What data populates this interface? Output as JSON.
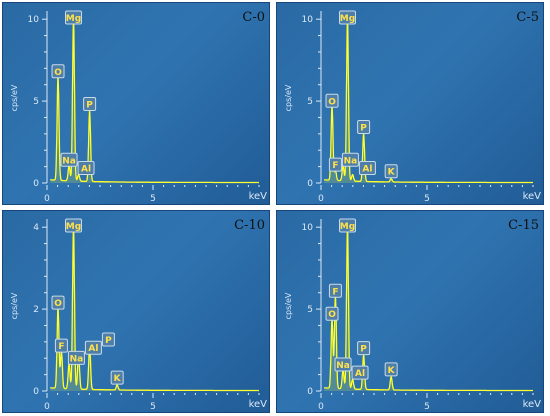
{
  "colors": {
    "spectrum": "#ffff2e",
    "panel_bg": "#2b6eaa",
    "peak_label": "#ffe24a",
    "axis": "#dce9f6"
  },
  "chart_data": [
    {
      "type": "line",
      "sample": "C-0",
      "xlabel": "keV",
      "ylabel": "cps/eV",
      "xlim": [
        0,
        10
      ],
      "ylim": [
        0,
        10.5
      ],
      "xticks": [
        0,
        5
      ],
      "yticks": [
        0,
        5,
        10
      ],
      "peaks": [
        {
          "element": "O",
          "kev": 0.52,
          "intensity": 6.3
        },
        {
          "element": "Na",
          "kev": 1.04,
          "intensity": 0.9
        },
        {
          "element": "Mg",
          "kev": 1.25,
          "intensity": 9.9
        },
        {
          "element": "Al",
          "kev": 1.49,
          "intensity": 0.4
        },
        {
          "element": "P",
          "kev": 2.01,
          "intensity": 4.3
        }
      ]
    },
    {
      "type": "line",
      "sample": "C-5",
      "xlabel": "keV",
      "ylabel": "cps/eV",
      "xlim": [
        0,
        10
      ],
      "ylim": [
        0,
        10.5
      ],
      "xticks": [
        0,
        5
      ],
      "yticks": [
        0,
        5,
        10
      ],
      "peaks": [
        {
          "element": "O",
          "kev": 0.52,
          "intensity": 4.5
        },
        {
          "element": "F",
          "kev": 0.68,
          "intensity": 0.6
        },
        {
          "element": "Na",
          "kev": 1.04,
          "intensity": 0.9
        },
        {
          "element": "Mg",
          "kev": 1.25,
          "intensity": 9.9
        },
        {
          "element": "Al",
          "kev": 1.49,
          "intensity": 0.4
        },
        {
          "element": "P",
          "kev": 2.01,
          "intensity": 2.9
        },
        {
          "element": "K",
          "kev": 3.31,
          "intensity": 0.2
        }
      ]
    },
    {
      "type": "line",
      "sample": "C-10",
      "xlabel": "keV",
      "ylabel": "cps/eV",
      "xlim": [
        0,
        10
      ],
      "ylim": [
        0,
        4.2
      ],
      "xticks": [
        0,
        5
      ],
      "yticks": [
        0,
        2,
        4
      ],
      "peaks": [
        {
          "element": "O",
          "kev": 0.52,
          "intensity": 1.95
        },
        {
          "element": "F",
          "kev": 0.68,
          "intensity": 0.9
        },
        {
          "element": "Na",
          "kev": 1.04,
          "intensity": 0.6
        },
        {
          "element": "Mg",
          "kev": 1.25,
          "intensity": 3.95
        },
        {
          "element": "Al",
          "kev": 1.49,
          "intensity": 0.85
        },
        {
          "element": "P",
          "kev": 2.01,
          "intensity": 1.05
        },
        {
          "element": "K",
          "kev": 3.31,
          "intensity": 0.12
        }
      ]
    },
    {
      "type": "line",
      "sample": "C-15",
      "xlabel": "keV",
      "ylabel": "cps/eV",
      "xlim": [
        0,
        10
      ],
      "ylim": [
        0,
        10.5
      ],
      "xticks": [
        0,
        5
      ],
      "yticks": [
        0,
        5,
        10
      ],
      "peaks": [
        {
          "element": "O",
          "kev": 0.52,
          "intensity": 4.2
        },
        {
          "element": "F",
          "kev": 0.68,
          "intensity": 5.6
        },
        {
          "element": "Na",
          "kev": 1.04,
          "intensity": 1.1
        },
        {
          "element": "Mg",
          "kev": 1.25,
          "intensity": 9.9
        },
        {
          "element": "Al",
          "kev": 1.49,
          "intensity": 0.6
        },
        {
          "element": "P",
          "kev": 2.01,
          "intensity": 2.1
        },
        {
          "element": "K",
          "kev": 3.31,
          "intensity": 0.8
        }
      ]
    }
  ]
}
